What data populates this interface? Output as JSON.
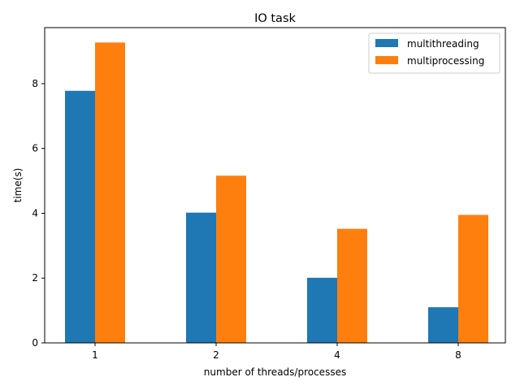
{
  "chart_data": {
    "type": "bar",
    "title": "IO task",
    "xlabel": "number of threads/processes",
    "ylabel": "time(s)",
    "categories": [
      "1",
      "2",
      "4",
      "8"
    ],
    "series": [
      {
        "name": "multithreading",
        "values": [
          7.78,
          4.02,
          2.01,
          1.1
        ],
        "color": "#1f77b4"
      },
      {
        "name": "multiprocessing",
        "values": [
          9.27,
          5.16,
          3.52,
          3.95
        ],
        "color": "#ff7f0e"
      }
    ],
    "ylim": [
      0,
      9.73
    ],
    "yticks": [
      0,
      2,
      4,
      6,
      8
    ],
    "legend": "top-right",
    "grid": false
  }
}
